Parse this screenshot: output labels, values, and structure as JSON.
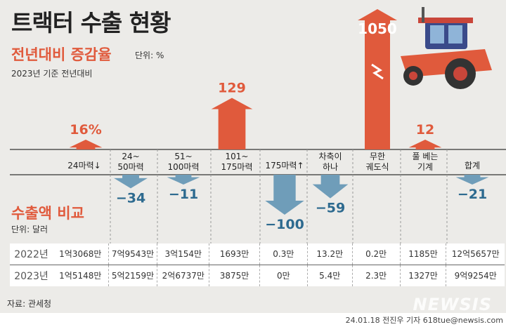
{
  "title": "트랙터 수출 현황",
  "section1": {
    "title": "전년대비 증감율",
    "unit": "단위: %",
    "base": "2023년 기준 전년대비"
  },
  "section2": {
    "title": "수출액 비교",
    "unit": "단위: 달러"
  },
  "chart_data": {
    "type": "bar",
    "title": "전년대비 증감율",
    "categories": [
      "24마력↓",
      "24~\n50마력",
      "51~\n100마력",
      "101~\n175마력",
      "175마력↑",
      "차축이\n하나",
      "무한\n궤도식",
      "풀 베는\n기계",
      "합계"
    ],
    "values": [
      16,
      -34,
      -11,
      129,
      -100,
      -59,
      1050,
      12,
      -21
    ],
    "value_labels": [
      "16%",
      "−34",
      "−11",
      "129",
      "−100",
      "−59",
      "1050",
      "12",
      "−21"
    ],
    "ylabel": "%",
    "axis_break": true
  },
  "table": {
    "rows": [
      {
        "year": "2022년",
        "values": [
          "1억3068만",
          "7억9543만",
          "3억154만",
          "1693만",
          "0.3만",
          "13.2만",
          "0.2만",
          "1185만",
          "12억5657만"
        ]
      },
      {
        "year": "2023년",
        "values": [
          "1억5148만",
          "5억2159만",
          "2억6737만",
          "3875만",
          "0만",
          "5.4만",
          "2.3만",
          "1327만",
          "9억9254만"
        ]
      }
    ]
  },
  "source": "자료: 관세청",
  "logo": "NEWSIS",
  "credit": "24.01.18 전진우 기자 618tue@newsis.com",
  "colors": {
    "up": "#e05a3c",
    "down": "#6f9db9",
    "down_text": "#2d6a8f",
    "bg": "#ecebe8"
  }
}
